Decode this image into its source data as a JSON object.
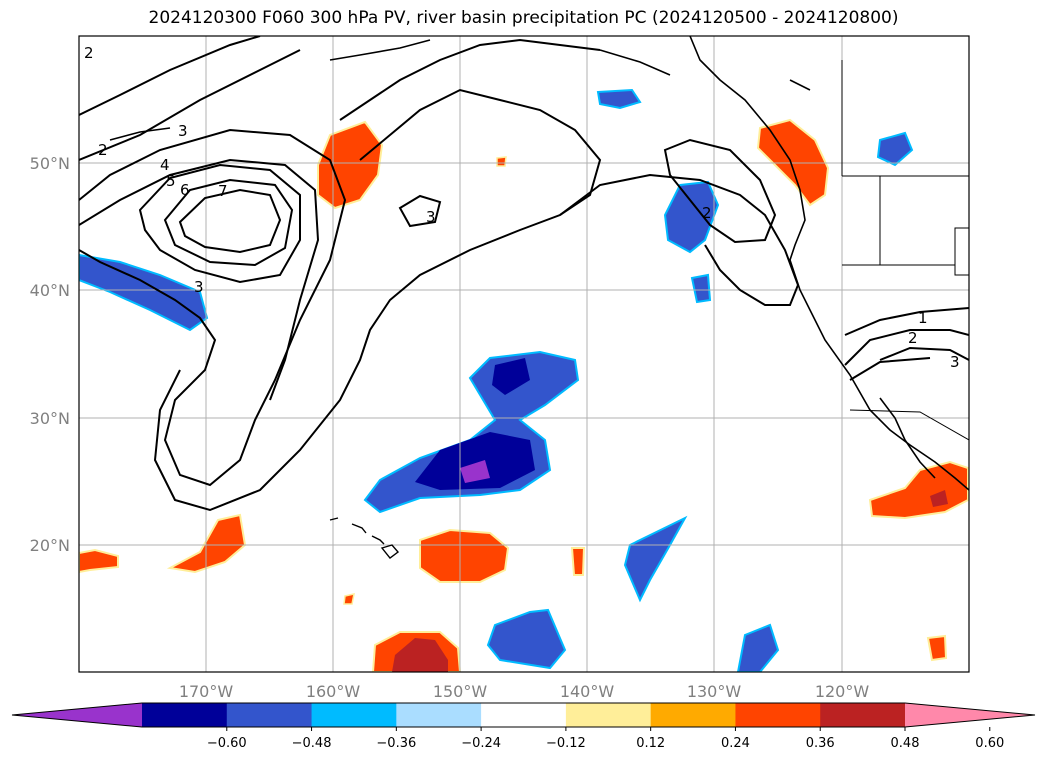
{
  "title": "2024120300 F060 300 hPa PV, river basin precipitation PC (2024120500 - 2024120800)",
  "map": {
    "lon_labels": [
      "170°W",
      "160°W",
      "150°W",
      "140°W",
      "130°W",
      "120°W"
    ],
    "lat_labels": [
      "50°N",
      "40°N",
      "30°N",
      "20°N"
    ],
    "pv_contour_labels": [
      "2",
      "3",
      "4",
      "5",
      "6",
      "7",
      "3",
      "2",
      "3",
      "2",
      "1",
      "2",
      "3"
    ]
  },
  "colorbar": {
    "tick_labels": [
      "−0.60",
      "−0.48",
      "−0.36",
      "−0.24",
      "−0.12",
      "0.12",
      "0.24",
      "0.36",
      "0.48",
      "0.60"
    ],
    "colors": [
      "#9933cc",
      "#000099",
      "#3355cc",
      "#00bbff",
      "#aaddff",
      "#ffffff",
      "#ffee99",
      "#ffaa00",
      "#ff4400",
      "#bb2222",
      "#ff88aa"
    ]
  },
  "colors": {
    "negative_fill": "#3355cc",
    "strong_negative_fill": "#000099",
    "positive_fill": "#ff4400",
    "strong_positive_fill": "#bb2222"
  }
}
